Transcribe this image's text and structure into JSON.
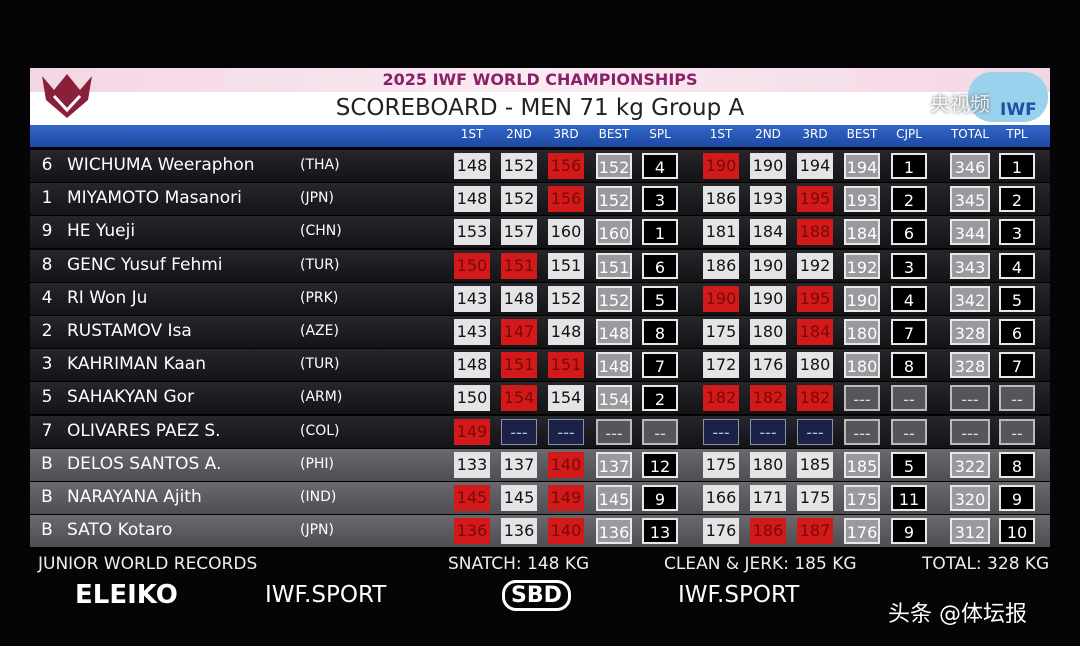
{
  "header": {
    "event": "2025 IWF WORLD CHAMPIONSHIPS",
    "title": "SCOREBOARD - MEN 71 kg Group A",
    "badge": "IWF"
  },
  "columns": [
    "1ST",
    "2ND",
    "3RD",
    "BEST",
    "SPL",
    "1ST",
    "2ND",
    "3RD",
    "BEST",
    "CJPL",
    "TOTAL",
    "TPL"
  ],
  "rows": [
    {
      "lot": 6,
      "name": "WICHUMA Weeraphon",
      "country": "(THA)",
      "snatch": [
        148,
        152,
        156
      ],
      "snatch_status": [
        "good",
        "good",
        "fail"
      ],
      "snatch_best": 152,
      "spl": 4,
      "cj": [
        190,
        190,
        194
      ],
      "cj_status": [
        "fail",
        "good",
        "good"
      ],
      "cj_best": 194,
      "cjpl": 1,
      "total": 346,
      "tpl": 1
    },
    {
      "lot": 1,
      "name": "MIYAMOTO Masanori",
      "country": "(JPN)",
      "snatch": [
        148,
        152,
        156
      ],
      "snatch_status": [
        "good",
        "good",
        "fail"
      ],
      "snatch_best": 152,
      "spl": 3,
      "cj": [
        186,
        193,
        195
      ],
      "cj_status": [
        "good",
        "good",
        "fail"
      ],
      "cj_best": 193,
      "cjpl": 2,
      "total": 345,
      "tpl": 2
    },
    {
      "lot": 9,
      "name": "HE Yueji",
      "country": "(CHN)",
      "snatch": [
        153,
        157,
        160
      ],
      "snatch_status": [
        "good",
        "good",
        "good"
      ],
      "snatch_best": 160,
      "spl": 1,
      "cj": [
        181,
        184,
        188
      ],
      "cj_status": [
        "good",
        "good",
        "fail"
      ],
      "cj_best": 184,
      "cjpl": 6,
      "total": 344,
      "tpl": 3
    },
    {
      "lot": 8,
      "name": "GENC Yusuf Fehmi",
      "country": "(TUR)",
      "snatch": [
        150,
        151,
        151
      ],
      "snatch_status": [
        "fail",
        "fail",
        "good"
      ],
      "snatch_best": 151,
      "spl": 6,
      "cj": [
        186,
        190,
        192
      ],
      "cj_status": [
        "good",
        "good",
        "good"
      ],
      "cj_best": 192,
      "cjpl": 3,
      "total": 343,
      "tpl": 4
    },
    {
      "lot": 4,
      "name": "RI Won Ju",
      "country": "(PRK)",
      "snatch": [
        143,
        148,
        152
      ],
      "snatch_status": [
        "good",
        "good",
        "good"
      ],
      "snatch_best": 152,
      "spl": 5,
      "cj": [
        190,
        190,
        195
      ],
      "cj_status": [
        "fail",
        "good",
        "fail"
      ],
      "cj_best": 190,
      "cjpl": 4,
      "total": 342,
      "tpl": 5
    },
    {
      "lot": 2,
      "name": "RUSTAMOV Isa",
      "country": "(AZE)",
      "snatch": [
        143,
        147,
        148
      ],
      "snatch_status": [
        "good",
        "fail",
        "good"
      ],
      "snatch_best": 148,
      "spl": 8,
      "cj": [
        175,
        180,
        184
      ],
      "cj_status": [
        "good",
        "good",
        "fail"
      ],
      "cj_best": 180,
      "cjpl": 7,
      "total": 328,
      "tpl": 6
    },
    {
      "lot": 3,
      "name": "KAHRIMAN Kaan",
      "country": "(TUR)",
      "snatch": [
        148,
        151,
        151
      ],
      "snatch_status": [
        "good",
        "fail",
        "fail"
      ],
      "snatch_best": 148,
      "spl": 7,
      "cj": [
        172,
        176,
        180
      ],
      "cj_status": [
        "good",
        "good",
        "good"
      ],
      "cj_best": 180,
      "cjpl": 8,
      "total": 328,
      "tpl": 7
    },
    {
      "lot": 5,
      "name": "SAHAKYAN Gor",
      "country": "(ARM)",
      "snatch": [
        150,
        154,
        154
      ],
      "snatch_status": [
        "good",
        "fail",
        "good"
      ],
      "snatch_best": 154,
      "spl": 2,
      "cj": [
        182,
        182,
        182
      ],
      "cj_status": [
        "fail",
        "fail",
        "fail"
      ],
      "cj_best": "---",
      "cjpl": "--",
      "total": "---",
      "tpl": "--"
    },
    {
      "lot": 7,
      "name": "OLIVARES PAEZ S.",
      "country": "(COL)",
      "snatch": [
        149,
        "---",
        "---"
      ],
      "snatch_status": [
        "fail",
        "none",
        "none"
      ],
      "snatch_best": "---",
      "spl": "--",
      "cj": [
        "---",
        "---",
        "---"
      ],
      "cj_status": [
        "none",
        "none",
        "none"
      ],
      "cj_best": "---",
      "cjpl": "--",
      "total": "---",
      "tpl": "--"
    },
    {
      "lot": "B",
      "name": "DELOS SANTOS A.",
      "country": "(PHI)",
      "snatch": [
        133,
        137,
        140
      ],
      "snatch_status": [
        "good",
        "good",
        "fail"
      ],
      "snatch_best": 137,
      "spl": 12,
      "cj": [
        175,
        180,
        185
      ],
      "cj_status": [
        "good",
        "good",
        "good"
      ],
      "cj_best": 185,
      "cjpl": 5,
      "total": 322,
      "tpl": 8
    },
    {
      "lot": "B",
      "name": "NARAYANA Ajith",
      "country": "(IND)",
      "snatch": [
        145,
        145,
        149
      ],
      "snatch_status": [
        "fail",
        "good",
        "fail"
      ],
      "snatch_best": 145,
      "spl": 9,
      "cj": [
        166,
        171,
        175
      ],
      "cj_status": [
        "good",
        "good",
        "good"
      ],
      "cj_best": 175,
      "cjpl": 11,
      "total": 320,
      "tpl": 9
    },
    {
      "lot": "B",
      "name": "SATO Kotaro",
      "country": "(JPN)",
      "snatch": [
        136,
        136,
        140
      ],
      "snatch_status": [
        "fail",
        "good",
        "fail"
      ],
      "snatch_best": 136,
      "spl": 13,
      "cj": [
        176,
        186,
        187
      ],
      "cj_status": [
        "good",
        "fail",
        "fail"
      ],
      "cj_best": 176,
      "cjpl": 9,
      "total": 312,
      "tpl": 10
    }
  ],
  "footer": {
    "records_title": "JUNIOR WORLD RECORDS",
    "snatch": "SNATCH: 148 KG",
    "clean_jerk": "CLEAN & JERK: 185 KG",
    "total": "TOTAL: 328 KG"
  },
  "sponsors": [
    "ELEIKO",
    "IWF.SPORT",
    "SBD",
    "IWF.SPORT"
  ],
  "watermarks": [
    "央视频",
    "头条 @体坛报"
  ]
}
